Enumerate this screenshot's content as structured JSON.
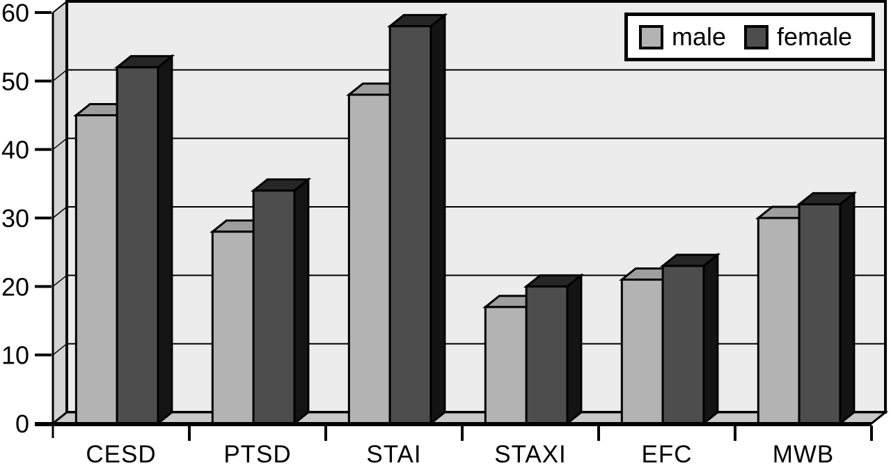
{
  "chart_data": {
    "type": "bar",
    "variant": "3d-clustered-column",
    "title": "",
    "categories": [
      "CESD",
      "PTSD",
      "STAI",
      "STAXI",
      "EFC",
      "MWB"
    ],
    "series": [
      {
        "name": "male",
        "values": [
          45,
          28,
          48,
          17,
          21,
          30
        ],
        "color": "#b3b3b3",
        "color_top": "#9e9e9e",
        "color_side": "#828282"
      },
      {
        "name": "female",
        "values": [
          52,
          34,
          58,
          20,
          23,
          32
        ],
        "color": "#4d4d4d",
        "color_top": "#262626",
        "color_side": "#141414"
      }
    ],
    "xlabel": "",
    "ylabel": "",
    "ylim": [
      0,
      60
    ],
    "yticks": [
      0,
      10,
      20,
      30,
      40,
      50,
      60
    ],
    "grid": true,
    "legend": {
      "position": "top-right",
      "labels": [
        "male",
        "female"
      ]
    },
    "colors": {
      "plot_bg": "#ececec",
      "wall": "#d2d2d2",
      "floor": "#c9c9c9",
      "gridline": "#000000",
      "axis": "#000000",
      "text": "#000000",
      "legend_bg": "#ffffff",
      "legend_border": "#000000"
    }
  }
}
